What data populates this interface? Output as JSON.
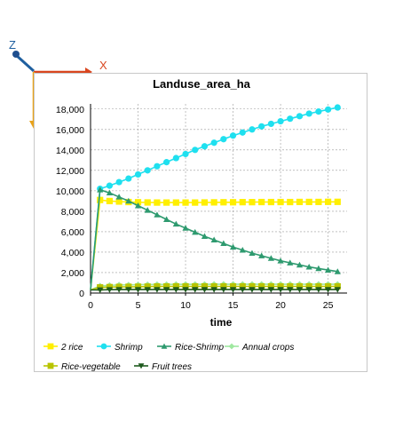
{
  "gizmo": {
    "z_label": "Z",
    "x_label": "X",
    "colors": {
      "z": "#1f5f9f",
      "x": "#d9461f",
      "y": "#e8a31b",
      "origin": "#1f4f8f"
    }
  },
  "chart_data": {
    "type": "line",
    "title": "Landuse_area_ha",
    "xlabel": "time",
    "ylabel": "",
    "xlim": [
      0,
      27
    ],
    "ylim": [
      0,
      18500
    ],
    "xticks": [
      0,
      5,
      10,
      15,
      20,
      25
    ],
    "yticks": [
      0,
      2000,
      4000,
      6000,
      8000,
      10000,
      12000,
      14000,
      16000,
      18000
    ],
    "ytick_labels": [
      "0",
      "2,000",
      "4,000",
      "6,000",
      "8,000",
      "10,000",
      "12,000",
      "14,000",
      "16,000",
      "18,000"
    ],
    "grid": true,
    "legend_position": "bottom",
    "x": [
      0,
      1,
      2,
      3,
      4,
      5,
      6,
      7,
      8,
      9,
      10,
      11,
      12,
      13,
      14,
      15,
      16,
      17,
      18,
      19,
      20,
      21,
      22,
      23,
      24,
      25,
      26
    ],
    "series": [
      {
        "name": "2 rice",
        "color": "#ffef00",
        "marker": "square",
        "values": [
          300,
          9100,
          9000,
          8950,
          8900,
          8880,
          8860,
          8850,
          8850,
          8850,
          8850,
          8850,
          8860,
          8870,
          8880,
          8880,
          8890,
          8890,
          8900,
          8900,
          8900,
          8900,
          8910,
          8910,
          8910,
          8920,
          8920
        ]
      },
      {
        "name": "Shrimp",
        "color": "#1fe0ef",
        "marker": "circle",
        "values": [
          300,
          10200,
          10500,
          10850,
          11200,
          11600,
          12000,
          12400,
          12800,
          13200,
          13600,
          14000,
          14350,
          14700,
          15050,
          15400,
          15700,
          16000,
          16300,
          16550,
          16800,
          17050,
          17300,
          17550,
          17750,
          17950,
          18150
        ]
      },
      {
        "name": "Rice-Shrimp",
        "color": "#2e9a6f",
        "marker": "triangle",
        "values": [
          300,
          10100,
          9800,
          9400,
          9000,
          8550,
          8100,
          7650,
          7200,
          6750,
          6350,
          5950,
          5550,
          5200,
          4850,
          4500,
          4200,
          3900,
          3650,
          3400,
          3150,
          2950,
          2750,
          2550,
          2400,
          2250,
          2100
        ]
      },
      {
        "name": "Annual crops",
        "color": "#9fe8a0",
        "marker": "diamond",
        "values": [
          300,
          700,
          750,
          800,
          800,
          820,
          830,
          840,
          840,
          850,
          850,
          850,
          850,
          860,
          860,
          860,
          860,
          860,
          860,
          860,
          860,
          860,
          860,
          860,
          860,
          860,
          860
        ]
      },
      {
        "name": "Rice-vegetable",
        "color": "#b8c400",
        "marker": "square",
        "values": [
          300,
          550,
          580,
          600,
          610,
          620,
          630,
          640,
          640,
          650,
          650,
          650,
          650,
          650,
          650,
          650,
          650,
          650,
          650,
          650,
          650,
          650,
          650,
          650,
          650,
          650,
          650
        ]
      },
      {
        "name": "Fruit trees",
        "color": "#1e5a1e",
        "marker": "triangle-down",
        "values": [
          300,
          300,
          330,
          340,
          340,
          340,
          340,
          340,
          340,
          340,
          340,
          340,
          340,
          340,
          340,
          340,
          340,
          340,
          340,
          340,
          340,
          340,
          340,
          340,
          340,
          340,
          340
        ]
      }
    ]
  }
}
